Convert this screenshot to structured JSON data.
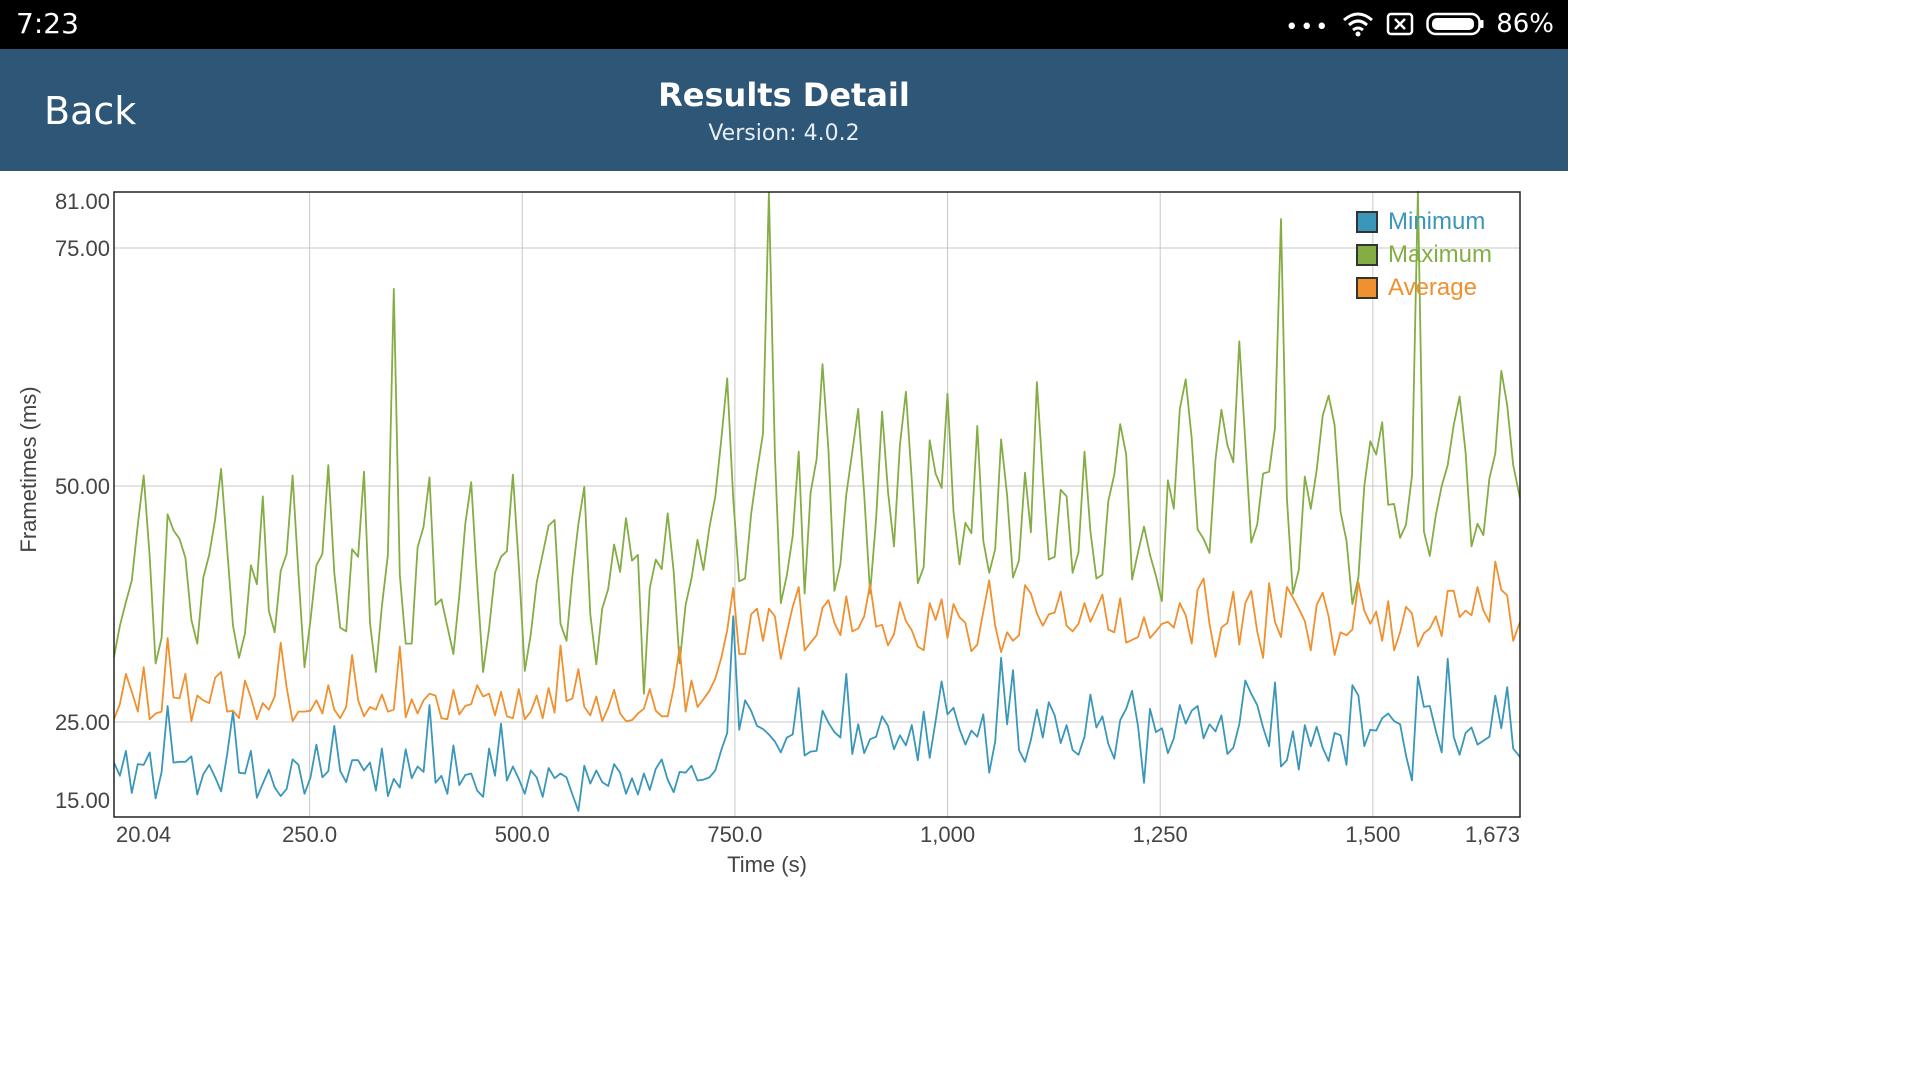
{
  "status_bar": {
    "time": "7:23",
    "battery": "86%",
    "icons": [
      "more-dots-icon",
      "wifi-icon",
      "sim-off-icon",
      "battery-icon"
    ]
  },
  "header": {
    "back_label": "Back",
    "title": "Results Detail",
    "subtitle": "Version: 4.0.2"
  },
  "colors": {
    "header_bg": "#2d5677",
    "minimum": "#3a97b9",
    "maximum": "#84ad44",
    "average": "#f0902f"
  },
  "chart_data": {
    "type": "line",
    "title": "",
    "xlabel": "Time (s)",
    "ylabel": "Frametimes (ms)",
    "xlim": [
      20.04,
      1673
    ],
    "ylim": [
      13,
      81
    ],
    "grid": true,
    "legend_position": "top-right",
    "x_ticks": [
      20.04,
      250,
      500,
      750,
      1000,
      1250,
      1500,
      1673
    ],
    "x_tick_labels": [
      "20.04",
      "250.0",
      "500.0",
      "750.0",
      "1,000",
      "1,250",
      "1,500",
      "1,673"
    ],
    "y_ticks": [
      15,
      25,
      50,
      75,
      81
    ],
    "y_tick_labels": [
      "15.00",
      "25.00",
      "50.00",
      "75.00",
      "81.00"
    ],
    "x": [
      20,
      27,
      34,
      41,
      48,
      55,
      62,
      69,
      76,
      83,
      90,
      97,
      104,
      111,
      118,
      125,
      132,
      139,
      146,
      153,
      160,
      167,
      174,
      181,
      188,
      195,
      202,
      209,
      216,
      223,
      230,
      237,
      244,
      251,
      258,
      265,
      272,
      279,
      286,
      293,
      300,
      307,
      314,
      321,
      328,
      335,
      342,
      349,
      356,
      363,
      370,
      377,
      384,
      391,
      398,
      405,
      412,
      419,
      426,
      433,
      440,
      447,
      454,
      461,
      468,
      475,
      482,
      489,
      496,
      503,
      510,
      517,
      524,
      531,
      538,
      545,
      552,
      559,
      566,
      573,
      580,
      587,
      594,
      601,
      608,
      615,
      622,
      629,
      636,
      643,
      650,
      657,
      664,
      671,
      678,
      685,
      692,
      699,
      706,
      713,
      720,
      727,
      734,
      741,
      748,
      755,
      762,
      769,
      776,
      783,
      790,
      797,
      804,
      811,
      818,
      825,
      832,
      839,
      846,
      853,
      860,
      867,
      874,
      881,
      888,
      895,
      902,
      909,
      916,
      923,
      930,
      937,
      944,
      951,
      958,
      965,
      972,
      979,
      986,
      993,
      1000,
      1007,
      1014,
      1021,
      1028,
      1035,
      1042,
      1049,
      1056,
      1063,
      1070,
      1077,
      1084,
      1091,
      1098,
      1105,
      1112,
      1119,
      1126,
      1133,
      1140,
      1147,
      1154,
      1161,
      1168,
      1175,
      1182,
      1189,
      1196,
      1203,
      1210,
      1217,
      1224,
      1231,
      1238,
      1245,
      1252,
      1259,
      1266,
      1273,
      1280,
      1287,
      1294,
      1301,
      1308,
      1315,
      1322,
      1329,
      1336,
      1343,
      1350,
      1357,
      1364,
      1371,
      1378,
      1385,
      1392,
      1399,
      1406,
      1413,
      1420,
      1427,
      1434,
      1441,
      1448,
      1455,
      1462,
      1469,
      1476,
      1483,
      1490,
      1497,
      1504,
      1511,
      1518,
      1525,
      1532,
      1539,
      1546,
      1553,
      1560,
      1567,
      1574,
      1581,
      1588,
      1595,
      1602,
      1609,
      1616,
      1623,
      1630,
      1637,
      1644,
      1651,
      1658,
      1665,
      1673
    ],
    "series": [
      {
        "name": "Minimum",
        "values": [
          19.8,
          18.1,
          21.3,
          15.9,
          19.6,
          19.5,
          21.1,
          15.2,
          18.6,
          26.7,
          19.8,
          19.9,
          19.9,
          20.6,
          15.7,
          18.3,
          19.5,
          17.9,
          16.1,
          20.8,
          26.1,
          18.5,
          18.4,
          21.3,
          15.3,
          17.1,
          18.9,
          16.6,
          15.5,
          16.4,
          20.2,
          19.5,
          15.8,
          17.9,
          22.1,
          17.9,
          18.7,
          24.5,
          18.7,
          17.3,
          20.1,
          20.1,
          18.8,
          19.8,
          16.2,
          21.6,
          15.5,
          17.7,
          16.6,
          21.5,
          17.8,
          19.3,
          18.6,
          26.8,
          17.2,
          18.1,
          15.8,
          22.0,
          16.9,
          18.2,
          18.4,
          16.2,
          15.4,
          21.6,
          18.1,
          24.8,
          17.5,
          19.3,
          17.7,
          15.8,
          18.8,
          17.9,
          15.4,
          19.1,
          17.8,
          18.4,
          17.9,
          15.7,
          13.6,
          19.4,
          17.1,
          18.8,
          17.3,
          16.8,
          19.6,
          18.5,
          15.8,
          17.8,
          15.7,
          18.4,
          16.3,
          19.0,
          20.2,
          17.6,
          16.0,
          18.6,
          18.5,
          19.4,
          17.5,
          17.6,
          17.9,
          18.8,
          21.4,
          23.6,
          36.2,
          24.0,
          27.3,
          26.2,
          24.5,
          24.1,
          23.4,
          22.5,
          21.1,
          23.0,
          23.4,
          28.6,
          20.7,
          21.2,
          21.3,
          26.2,
          24.9,
          23.7,
          23.0,
          30.1,
          20.9,
          24.7,
          21.0,
          22.8,
          23.1,
          25.6,
          24.5,
          21.5,
          23.3,
          22.0,
          24.6,
          20.1,
          26.1,
          20.4,
          25.1,
          29.3,
          25.8,
          26.5,
          24.1,
          22.1,
          23.9,
          23.1,
          25.8,
          18.5,
          22.5,
          31.8,
          24.7,
          30.5,
          21.4,
          19.9,
          22.7,
          26.3,
          23.0,
          27.1,
          25.7,
          22.3,
          24.6,
          21.4,
          20.8,
          23.1,
          27.9,
          24.3,
          25.6,
          22.2,
          20.3,
          25.2,
          26.4,
          28.3,
          24.4,
          17.2,
          26.4,
          23.7,
          24.2,
          21.0,
          22.9,
          26.8,
          24.8,
          26.2,
          26.7,
          22.9,
          24.7,
          23.8,
          25.7,
          20.9,
          21.7,
          24.7,
          29.4,
          28.0,
          26.8,
          24.3,
          21.9,
          29.2,
          19.3,
          20.1,
          23.8,
          18.9,
          24.6,
          21.9,
          24.4,
          21.7,
          20.0,
          23.6,
          23.3,
          19.5,
          28.9,
          27.8,
          21.9,
          24.0,
          23.9,
          25.4,
          25.9,
          25.1,
          24.7,
          20.7,
          17.5,
          29.8,
          26.6,
          26.7,
          23.9,
          21.1,
          31.7,
          23.1,
          20.8,
          23.6,
          24.3,
          22.1,
          22.6,
          23.1,
          27.8,
          24.2,
          28.7,
          21.6,
          20.5
        ]
      },
      {
        "name": "Maximum",
        "values": [
          31.9,
          35.2,
          37.7,
          40.0,
          45.9,
          51.1,
          42.5,
          31.2,
          33.9,
          47.0,
          45.3,
          44.4,
          42.4,
          35.8,
          33.3,
          40.3,
          42.7,
          46.5,
          51.8,
          43.4,
          35.2,
          31.8,
          34.4,
          41.6,
          39.6,
          48.9,
          36.8,
          34.5,
          41.0,
          42.8,
          51.1,
          40.6,
          30.8,
          35.8,
          41.6,
          42.8,
          52.2,
          40.8,
          35.0,
          34.6,
          43.3,
          42.5,
          51.5,
          35.5,
          30.3,
          37.3,
          42.7,
          70.7,
          40.6,
          33.3,
          33.3,
          43.5,
          45.7,
          50.9,
          37.4,
          38.0,
          35.1,
          32.2,
          38.4,
          46.0,
          50.4,
          39.8,
          30.3,
          34.9,
          40.8,
          42.5,
          43.1,
          51.2,
          41.6,
          30.4,
          34.3,
          39.8,
          42.8,
          45.8,
          46.4,
          35.4,
          33.6,
          40.5,
          46.0,
          49.9,
          36.4,
          31.1,
          37.0,
          39.1,
          43.8,
          40.9,
          46.6,
          42.1,
          42.7,
          28.0,
          39.2,
          42.2,
          41.2,
          47.1,
          40.9,
          31.2,
          37.4,
          40.2,
          44.3,
          41.1,
          45.6,
          48.9,
          54.9,
          61.3,
          48.7,
          39.9,
          40.2,
          47.0,
          51.5,
          55.5,
          82.1,
          53.3,
          37.6,
          40.5,
          44.7,
          53.6,
          38.6,
          49.3,
          52.8,
          62.8,
          53.7,
          38.9,
          41.7,
          49.1,
          53.6,
          58.1,
          49.1,
          38.6,
          46.5,
          57.8,
          49.4,
          43.6,
          54.3,
          59.9,
          50.6,
          39.7,
          41.4,
          54.8,
          51.3,
          49.8,
          59.7,
          47.3,
          41.7,
          46.1,
          45.0,
          56.3,
          44.2,
          40.8,
          43.3,
          54.9,
          49.0,
          40.3,
          42.1,
          51.4,
          45.1,
          60.9,
          51.1,
          42.2,
          42.5,
          49.6,
          48.9,
          40.8,
          43.0,
          53.6,
          45.2,
          40.2,
          40.6,
          48.4,
          51.2,
          56.5,
          53.3,
          40.1,
          43.0,
          45.7,
          42.7,
          40.5,
          37.8,
          50.6,
          47.6,
          58.1,
          61.2,
          55.0,
          45.4,
          44.4,
          42.9,
          52.8,
          58.0,
          54.3,
          52.5,
          65.2,
          54.6,
          44.0,
          45.9,
          51.3,
          51.5,
          56.1,
          78.7,
          48.7,
          38.6,
          41.1,
          51.0,
          47.6,
          51.7,
          57.4,
          59.5,
          56.4,
          47.3,
          44.2,
          37.5,
          40.3,
          50.0,
          54.7,
          53.3,
          56.7,
          48.0,
          48.1,
          44.5,
          45.9,
          51.1,
          82.2,
          45.2,
          42.6,
          46.9,
          50.0,
          52.2,
          56.4,
          59.4,
          53.5,
          43.6,
          46.0,
          44.8,
          50.8,
          53.4,
          62.1,
          58.5,
          52.2,
          48.7
        ]
      },
      {
        "name": "Average",
        "values": [
          25.3,
          26.9,
          30.1,
          28.2,
          26.1,
          30.8,
          25.3,
          25.9,
          26.1,
          33.9,
          27.6,
          27.5,
          30.1,
          25.1,
          27.8,
          27.3,
          27.0,
          29.7,
          30.3,
          26.1,
          26.2,
          25.4,
          29.4,
          27.6,
          25.3,
          27.0,
          26.3,
          27.7,
          33.4,
          28.7,
          25.1,
          26.1,
          26.1,
          26.2,
          27.3,
          25.9,
          28.9,
          26.3,
          25.4,
          26.6,
          32.1,
          27.3,
          25.6,
          26.6,
          26.3,
          27.9,
          26.1,
          26.3,
          33.0,
          25.5,
          27.4,
          25.9,
          27.3,
          28.0,
          27.8,
          25.4,
          25.3,
          28.4,
          25.8,
          26.7,
          26.9,
          28.9,
          27.7,
          28.0,
          25.7,
          28.2,
          25.6,
          25.4,
          28.5,
          25.3,
          26.1,
          27.8,
          25.4,
          28.6,
          26.0,
          33.1,
          27.2,
          27.5,
          30.6,
          26.6,
          25.7,
          27.7,
          25.1,
          26.5,
          28.4,
          25.9,
          25.1,
          25.2,
          25.9,
          26.4,
          28.5,
          26.2,
          25.6,
          25.6,
          28.6,
          32.9,
          26.1,
          29.4,
          26.6,
          27.4,
          28.3,
          29.6,
          31.8,
          34.7,
          39.2,
          32.2,
          32.2,
          36.4,
          37.0,
          33.6,
          37.0,
          36.2,
          31.7,
          34.5,
          37.2,
          39.3,
          32.6,
          33.4,
          34.2,
          37.1,
          37.9,
          35.5,
          34.2,
          38.3,
          34.6,
          34.9,
          36.2,
          39.6,
          35.1,
          35.3,
          33.1,
          34.3,
          37.7,
          35.7,
          34.7,
          33.0,
          32.6,
          37.6,
          35.8,
          38.0,
          33.9,
          37.5,
          36.1,
          35.5,
          32.5,
          33.2,
          36.7,
          40.0,
          35.2,
          32.4,
          34.5,
          33.6,
          34.2,
          39.5,
          38.6,
          36.5,
          35.2,
          36.4,
          36.6,
          38.8,
          35.2,
          34.6,
          35.4,
          37.6,
          35.6,
          37.0,
          38.5,
          34.8,
          34.5,
          38.1,
          33.4,
          33.7,
          34.0,
          36.1,
          33.9,
          34.6,
          35.4,
          35.6,
          35.0,
          37.6,
          36.3,
          33.3,
          39.0,
          40.2,
          35.4,
          31.9,
          35.0,
          35.5,
          38.8,
          33.2,
          37.6,
          38.9,
          34.6,
          31.8,
          39.7,
          35.6,
          34.0,
          39.3,
          38.2,
          37.0,
          35.7,
          32.6,
          37.4,
          38.7,
          36.2,
          32.1,
          34.5,
          34.2,
          34.8,
          39.8,
          36.8,
          35.4,
          36.7,
          33.6,
          37.8,
          32.6,
          34.5,
          37.2,
          36.5,
          33.0,
          34.4,
          34.9,
          36.2,
          34.1,
          38.9,
          38.9,
          36.1,
          36.8,
          36.3,
          39.3,
          36.8,
          35.6,
          42.0,
          39.0,
          38.4,
          33.6,
          35.6
        ]
      }
    ]
  }
}
